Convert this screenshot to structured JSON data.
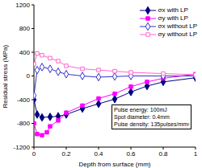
{
  "chart_data": {
    "type": "line",
    "xlabel": "Depth from surface (mm)",
    "ylabel": "Residual stress (MPa)",
    "xlim": [
      0,
      1
    ],
    "xticks": [
      0,
      0.2,
      0.4,
      0.6,
      0.8,
      1
    ],
    "ylim": [
      -1200,
      1200
    ],
    "yticks": [
      -1200,
      -800,
      -400,
      0,
      400,
      800,
      1200
    ],
    "grid": false,
    "legend": "upper right",
    "annotations": [
      "Pulse energy: 100mJ",
      "Spot diameter: 0.4mm",
      "Pulse density: 135pulses/mm²"
    ],
    "series": [
      {
        "name": "σx with LP",
        "color": "#000080",
        "marker": "diamond",
        "x": [
          0,
          0.02,
          0.05,
          0.1,
          0.15,
          0.2,
          0.3,
          0.4,
          0.5,
          0.6,
          0.7,
          0.8,
          1.0
        ],
        "values": [
          -400,
          -650,
          -700,
          -690,
          -680,
          -650,
          -550,
          -470,
          -390,
          -270,
          -170,
          -100,
          -30
        ]
      },
      {
        "name": "σy with LP",
        "color": "#ff00ff",
        "marker": "square",
        "x": [
          0,
          0.02,
          0.05,
          0.08,
          0.1,
          0.15,
          0.2,
          0.3,
          0.4,
          0.5,
          0.6,
          0.7,
          0.8,
          1.0
        ],
        "values": [
          -800,
          -980,
          -1000,
          -950,
          -850,
          -750,
          -620,
          -500,
          -380,
          -300,
          -180,
          -100,
          -40,
          30
        ]
      },
      {
        "name": "σx without LP",
        "color": "#3333cc",
        "marker": "diamond-open",
        "x": [
          0,
          0.02,
          0.05,
          0.1,
          0.15,
          0.2,
          0.3,
          0.4,
          0.5,
          0.6,
          0.8,
          1.0
        ],
        "values": [
          -330,
          100,
          150,
          120,
          70,
          30,
          0,
          -20,
          -10,
          0,
          0,
          0
        ]
      },
      {
        "name": "σy without LP",
        "color": "#ff66cc",
        "marker": "square-open",
        "x": [
          0,
          0.02,
          0.05,
          0.1,
          0.15,
          0.2,
          0.3,
          0.4,
          0.5,
          0.6,
          0.8,
          1.0
        ],
        "values": [
          200,
          380,
          350,
          300,
          250,
          170,
          120,
          100,
          80,
          60,
          40,
          20
        ]
      }
    ]
  }
}
